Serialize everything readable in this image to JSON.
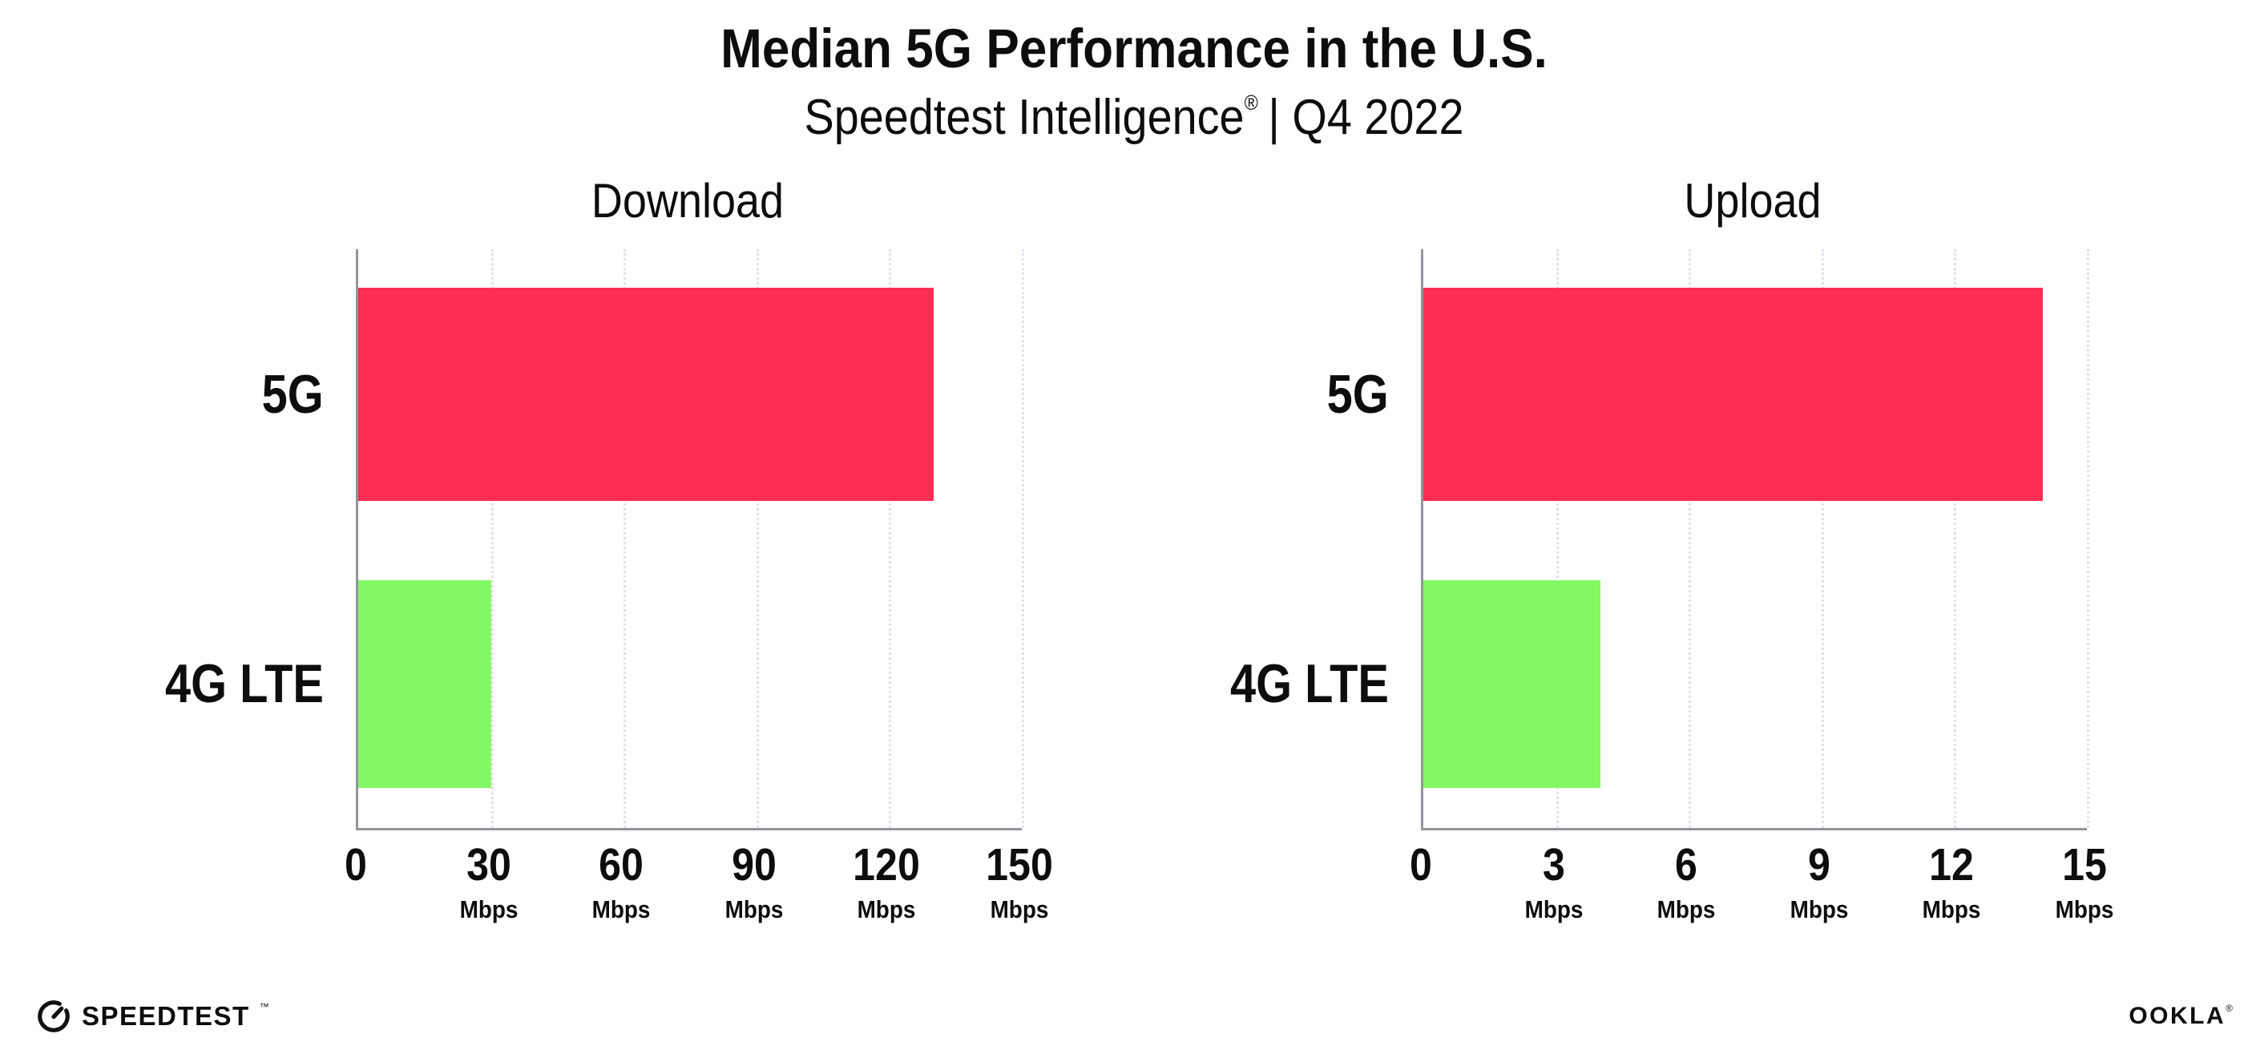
{
  "header": {
    "title": "Median 5G Performance in the U.S.",
    "subtitle_brand": "Speedtest Intelligence",
    "subtitle_reg": "®",
    "subtitle_rest": "| Q4 2022"
  },
  "chart_data": [
    {
      "type": "bar",
      "orientation": "horizontal",
      "title": "Download",
      "categories": [
        "5G",
        "4G LTE"
      ],
      "values": [
        130,
        30
      ],
      "unit": "Mbps",
      "xlim": [
        0,
        150
      ],
      "xticks": [
        0,
        30,
        60,
        90,
        120,
        150
      ],
      "tick_unit_label": "Mbps",
      "bar_colors": [
        "#FD2D55",
        "#82F963"
      ],
      "grid": "vertical-dotted",
      "legend": "none"
    },
    {
      "type": "bar",
      "orientation": "horizontal",
      "title": "Upload",
      "categories": [
        "5G",
        "4G LTE"
      ],
      "values": [
        14,
        4
      ],
      "unit": "Mbps",
      "xlim": [
        0,
        15
      ],
      "xticks": [
        0,
        3,
        6,
        9,
        12,
        15
      ],
      "tick_unit_label": "Mbps",
      "bar_colors": [
        "#FD2D55",
        "#82F963"
      ],
      "grid": "vertical-dotted",
      "legend": "none"
    }
  ],
  "footer": {
    "speedtest_label": "SPEEDTEST",
    "speedtest_mark": "™",
    "ookla_label": "OOKLA",
    "ookla_mark": "®"
  },
  "colors": {
    "bar_5g": "#FD2D55",
    "bar_4g_lte": "#82F963",
    "axis": "#94949C",
    "gridline": "#E1E2EC",
    "text": "#0D0D0D",
    "background": "#FFFFFF"
  }
}
